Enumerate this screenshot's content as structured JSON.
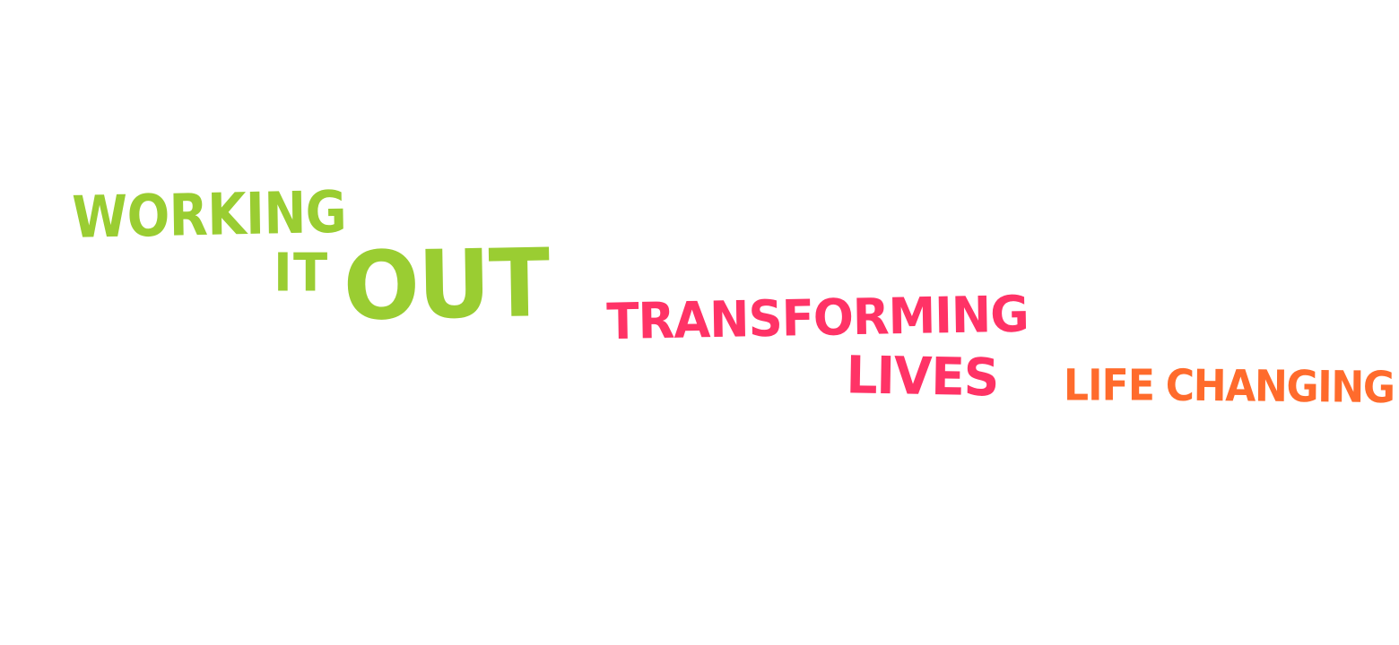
{
  "groups": {
    "working_it_out": {
      "color": "#9ACD32",
      "word1": "WORKING",
      "word2": "IT",
      "word3": "OUT"
    },
    "transforming_lives": {
      "color": "#FF3366",
      "word1": "TRANSFORMING",
      "word2": "LIVES"
    },
    "life_changing": {
      "color": "#FF6B2C",
      "word1": "LIFE",
      "word2": "CHANGING"
    }
  }
}
